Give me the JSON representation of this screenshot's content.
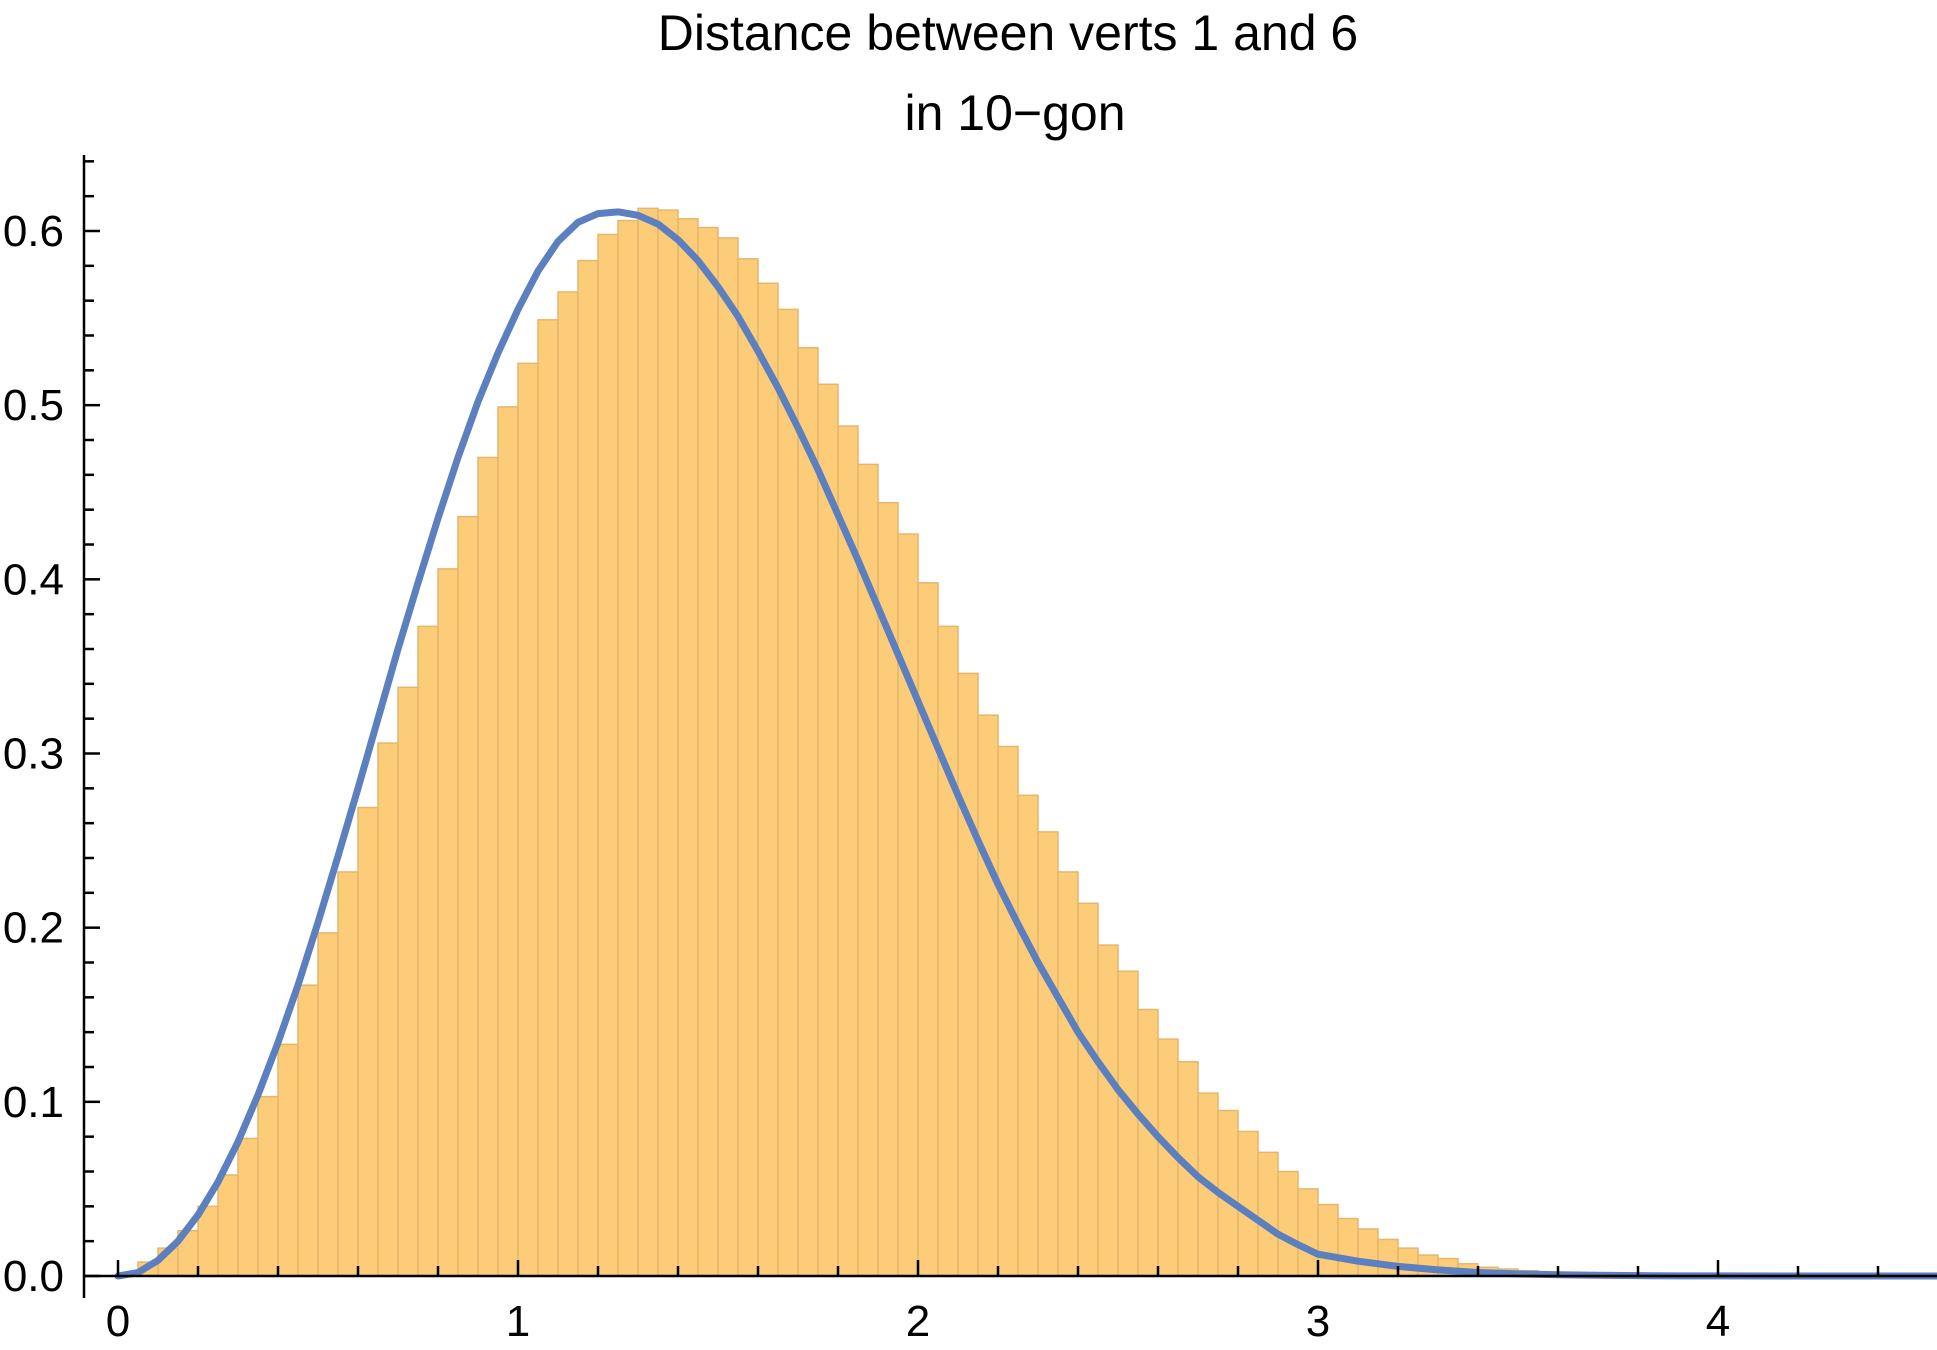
{
  "chart_data": {
    "type": "bar",
    "title_lines": [
      "Distance between verts 1 and 6",
      "in 10−gon"
    ],
    "xlabel": "",
    "ylabel": "",
    "xlim": [
      -0.08,
      4.6
    ],
    "ylim": [
      0,
      0.64
    ],
    "x_ticks": [
      0,
      1,
      2,
      3,
      4
    ],
    "x_tick_labels": [
      "0",
      "1",
      "2",
      "3",
      "4"
    ],
    "y_ticks": [
      0.0,
      0.1,
      0.2,
      0.3,
      0.4,
      0.5,
      0.6
    ],
    "y_tick_labels": [
      "0.0",
      "0.1",
      "0.2",
      "0.3",
      "0.4",
      "0.5",
      "0.6"
    ],
    "grid": false,
    "legend": "none",
    "histogram": {
      "bin_width": 0.05,
      "bin_starts": [
        0.05,
        0.1,
        0.15,
        0.2,
        0.25,
        0.3,
        0.35,
        0.4,
        0.45,
        0.5,
        0.55,
        0.6,
        0.65,
        0.7,
        0.75,
        0.8,
        0.85,
        0.9,
        0.95,
        1.0,
        1.05,
        1.1,
        1.15,
        1.2,
        1.25,
        1.3,
        1.35,
        1.4,
        1.45,
        1.5,
        1.55,
        1.6,
        1.65,
        1.7,
        1.75,
        1.8,
        1.85,
        1.9,
        1.95,
        2.0,
        2.05,
        2.1,
        2.15,
        2.2,
        2.25,
        2.3,
        2.35,
        2.4,
        2.45,
        2.5,
        2.55,
        2.6,
        2.65,
        2.7,
        2.75,
        2.8,
        2.85,
        2.9,
        2.95,
        3.0,
        3.05,
        3.1,
        3.15,
        3.2,
        3.25,
        3.3,
        3.35,
        3.4,
        3.45,
        3.5,
        3.55,
        3.6,
        3.65,
        3.7,
        3.75,
        3.8,
        3.85,
        3.9,
        3.95,
        4.0,
        4.05,
        4.1
      ],
      "values": [
        0.008,
        0.016,
        0.026,
        0.04,
        0.058,
        0.079,
        0.103,
        0.133,
        0.167,
        0.197,
        0.232,
        0.269,
        0.306,
        0.338,
        0.373,
        0.406,
        0.436,
        0.47,
        0.499,
        0.524,
        0.549,
        0.565,
        0.583,
        0.598,
        0.606,
        0.613,
        0.612,
        0.607,
        0.602,
        0.596,
        0.584,
        0.57,
        0.555,
        0.533,
        0.512,
        0.488,
        0.466,
        0.444,
        0.426,
        0.398,
        0.373,
        0.346,
        0.322,
        0.304,
        0.276,
        0.255,
        0.232,
        0.214,
        0.19,
        0.175,
        0.153,
        0.136,
        0.123,
        0.105,
        0.095,
        0.083,
        0.071,
        0.06,
        0.05,
        0.041,
        0.033,
        0.027,
        0.021,
        0.016,
        0.012,
        0.01,
        0.007,
        0.005,
        0.004,
        0.003,
        0.002,
        0.0015,
        0.001,
        0.0008,
        0.0006,
        0.0005,
        0.0004,
        0.0003,
        0.0002,
        0.0002,
        0.0001,
        0.0001
      ]
    },
    "series": [
      {
        "type": "line",
        "color": "#5B7FBF",
        "x": [
          0.0,
          0.05,
          0.1,
          0.15,
          0.2,
          0.25,
          0.3,
          0.35,
          0.4,
          0.45,
          0.5,
          0.55,
          0.6,
          0.65,
          0.7,
          0.75,
          0.8,
          0.85,
          0.9,
          0.95,
          1.0,
          1.05,
          1.1,
          1.15,
          1.2,
          1.25,
          1.3,
          1.35,
          1.4,
          1.45,
          1.5,
          1.55,
          1.6,
          1.65,
          1.7,
          1.75,
          1.8,
          1.85,
          1.9,
          1.95,
          2.0,
          2.05,
          2.1,
          2.15,
          2.2,
          2.25,
          2.3,
          2.35,
          2.4,
          2.45,
          2.5,
          2.55,
          2.6,
          2.65,
          2.7,
          2.75,
          2.8,
          2.85,
          2.9,
          2.95,
          3.0,
          3.1,
          3.2,
          3.3,
          3.4,
          3.5,
          3.6,
          3.7,
          3.8,
          3.9,
          4.0,
          4.2,
          4.4,
          4.6
        ],
        "y": [
          0.0,
          0.002,
          0.009,
          0.02,
          0.035,
          0.054,
          0.077,
          0.104,
          0.134,
          0.167,
          0.203,
          0.241,
          0.28,
          0.32,
          0.36,
          0.398,
          0.435,
          0.47,
          0.502,
          0.53,
          0.555,
          0.577,
          0.594,
          0.605,
          0.61,
          0.611,
          0.609,
          0.604,
          0.595,
          0.583,
          0.568,
          0.551,
          0.531,
          0.51,
          0.487,
          0.463,
          0.437,
          0.411,
          0.384,
          0.357,
          0.33,
          0.303,
          0.276,
          0.25,
          0.225,
          0.202,
          0.18,
          0.16,
          0.14,
          0.123,
          0.107,
          0.093,
          0.08,
          0.068,
          0.057,
          0.048,
          0.04,
          0.032,
          0.024,
          0.018,
          0.0125,
          0.0085,
          0.0055,
          0.0035,
          0.002,
          0.0012,
          0.0007,
          0.0004,
          0.0002,
          0.0001,
          0.0001,
          0.0,
          0.0,
          0.0
        ]
      }
    ]
  }
}
